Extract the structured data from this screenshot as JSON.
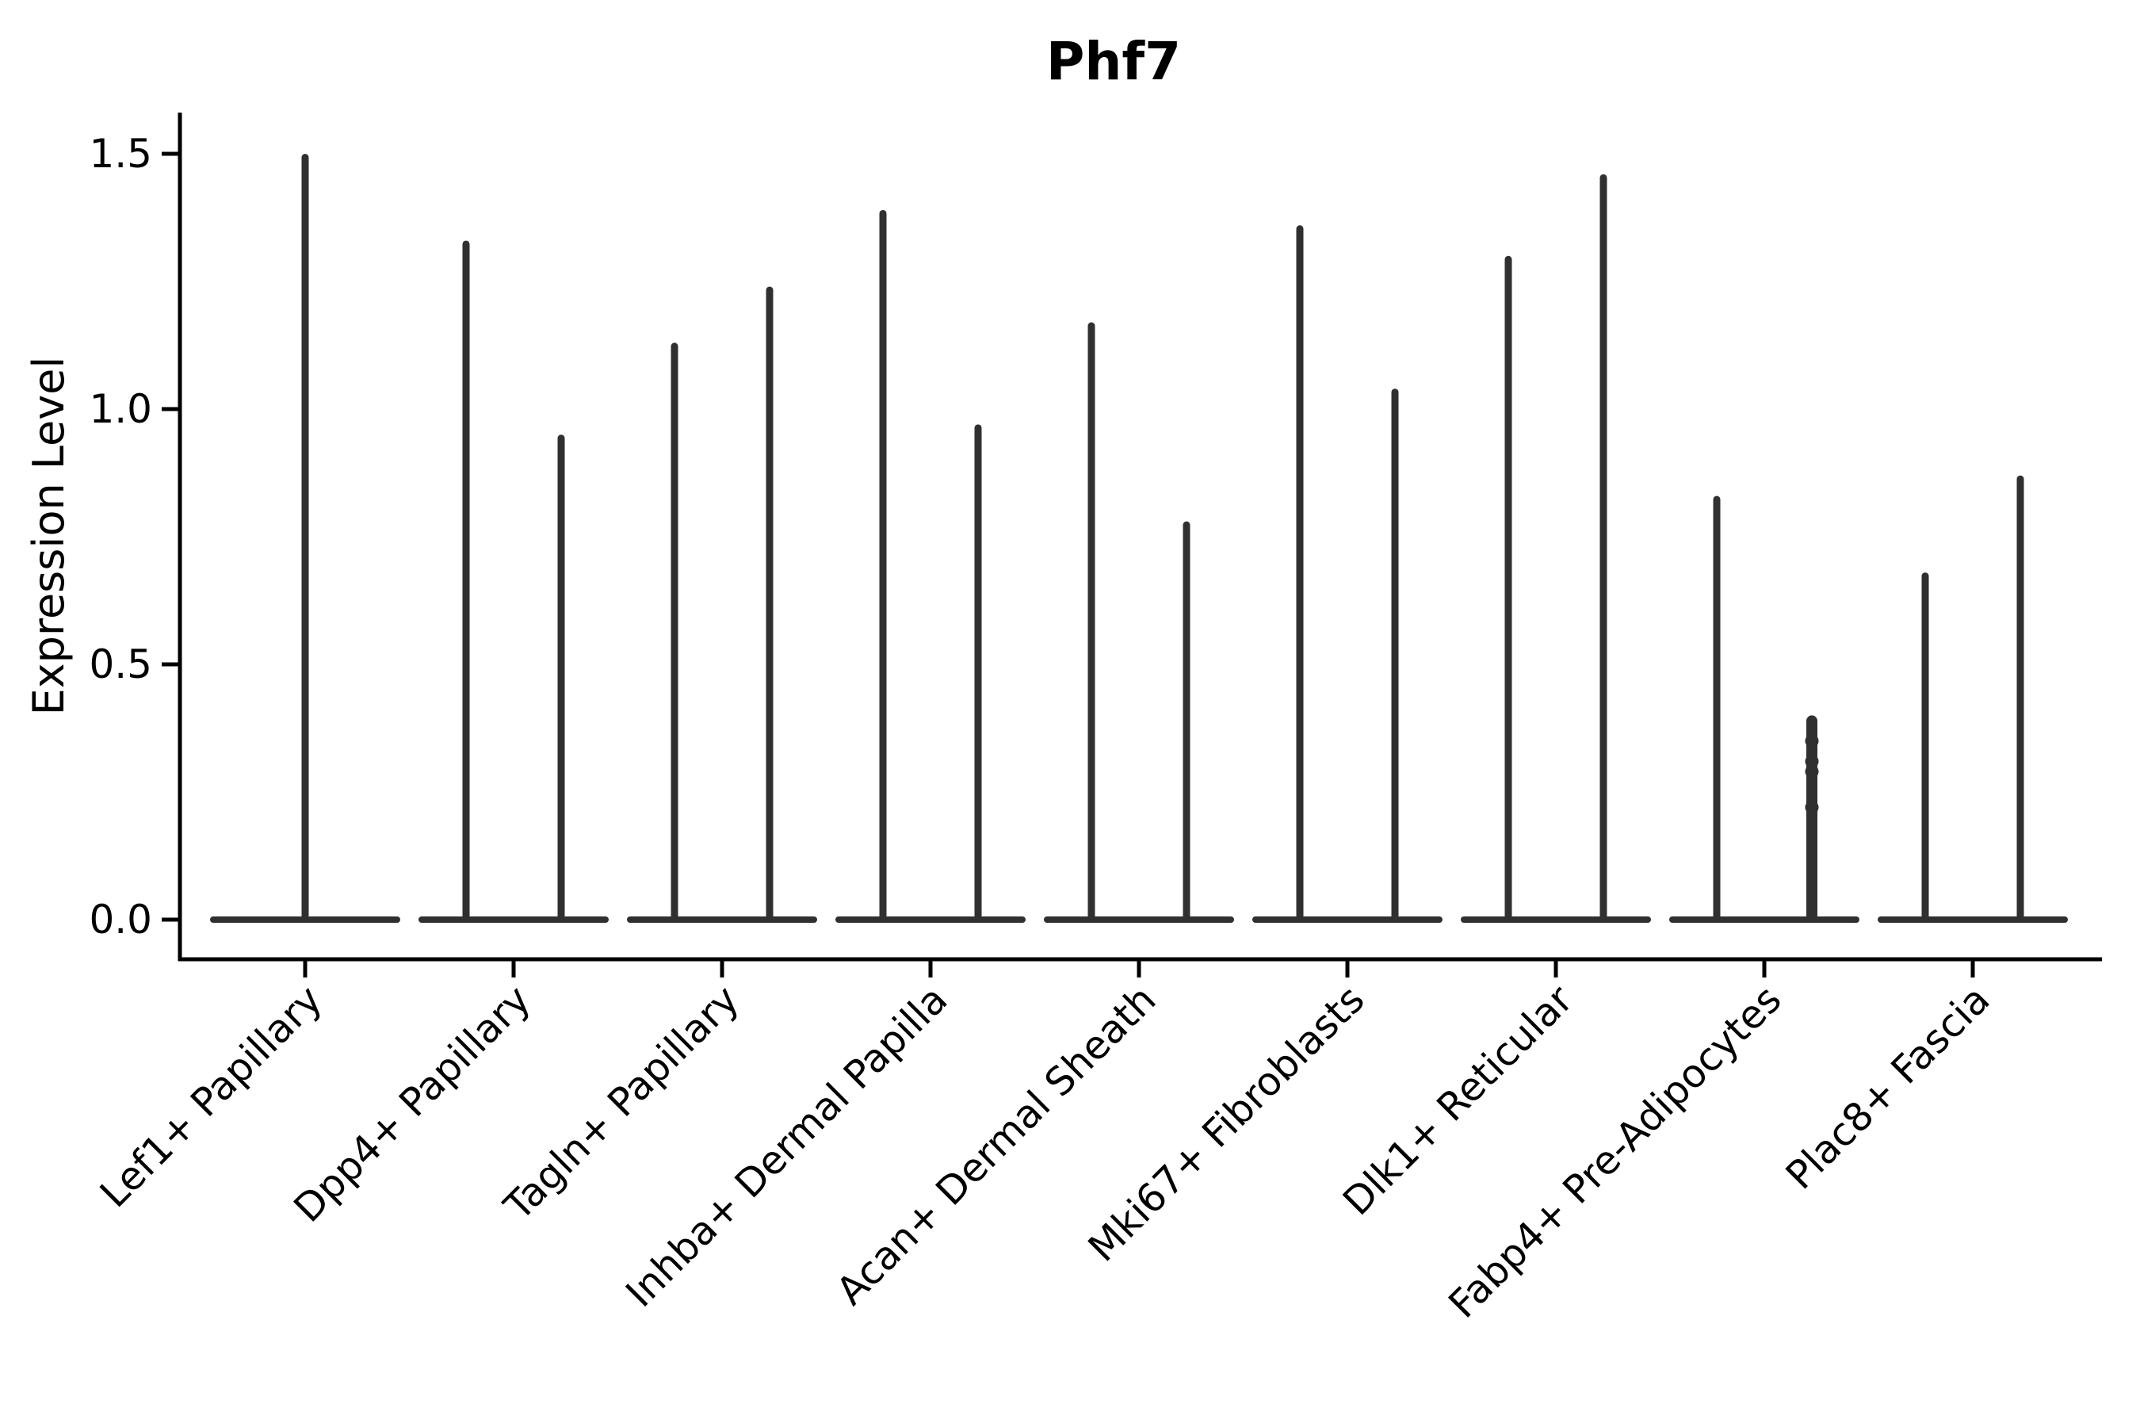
{
  "chart": {
    "title": "Phf7",
    "y_axis_label": "Expression Level",
    "y_tick_labels": [
      "1.5",
      "1.0",
      "0.5",
      "0.0"
    ]
  },
  "colors": {
    "violin_ink": "#303030",
    "axis_ink": "#000000",
    "background": "#ffffff"
  },
  "chart_data": {
    "type": "violin",
    "title": "Phf7",
    "xlabel": "",
    "ylabel": "Expression Level",
    "ylim": [
      0,
      1.58
    ],
    "yticks": [
      0.0,
      0.5,
      1.0,
      1.5
    ],
    "legend": "none",
    "grid": false,
    "categories": [
      "Lef1+ Papillary",
      "Dpp4+ Papillary",
      "Tagln+ Papillary",
      "Inhba+ Dermal Papilla",
      "Acan+ Dermal Sheath",
      "Mki67+ Fibroblasts",
      "Dlk1+ Reticular",
      "Fabp4+ Pre-Adipocytes",
      "Plac8+ Fascia"
    ],
    "groups": [
      {
        "category": "Lef1+ Papillary",
        "violin_max": [
          1.5
        ],
        "jitter_points": []
      },
      {
        "category": "Dpp4+ Papillary",
        "violin_max": [
          1.33,
          0.95
        ],
        "jitter_points": []
      },
      {
        "category": "Tagln+ Papillary",
        "violin_max": [
          1.13,
          1.24
        ],
        "jitter_points": []
      },
      {
        "category": "Inhba+ Dermal Papilla",
        "violin_max": [
          1.39,
          0.97
        ],
        "jitter_points": []
      },
      {
        "category": "Acan+ Dermal Sheath",
        "violin_max": [
          1.17,
          0.78
        ],
        "jitter_points": []
      },
      {
        "category": "Mki67+ Fibroblasts",
        "violin_max": [
          1.36,
          1.04
        ],
        "jitter_points": []
      },
      {
        "category": "Dlk1+ Reticular",
        "violin_max": [
          1.3,
          1.46
        ],
        "jitter_points": []
      },
      {
        "category": "Fabp4+ Pre-Adipocytes",
        "violin_max": [
          0.83,
          0.4
        ],
        "jitter_points": [
          0.35,
          0.31,
          0.29,
          0.22
        ]
      },
      {
        "category": "Plac8+ Fascia",
        "violin_max": [
          0.68,
          0.87
        ],
        "jitter_points": []
      }
    ]
  }
}
